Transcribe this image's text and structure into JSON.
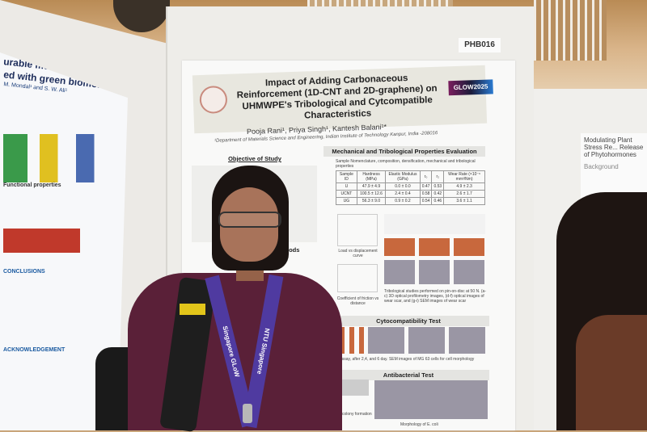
{
  "booth_label": "PHB016",
  "main_poster": {
    "title": "Impact of Adding Carbonaceous Reinforcement (1D-CNT and 2D-graphene) on UHMWPE's Tribological and Cytcompatible Characteristics",
    "conference_logo": "GLOW2025",
    "authors": "Pooja Rani¹, Priya Singh¹, Kantesh Balani¹*",
    "affiliation": "¹Department of Materials Science and Engineering, Indian Institute of Technology Kanpur, India -208016",
    "sections": {
      "objective": "Objective of Study",
      "methods": "Methods",
      "mechanical": "Mechanical and Tribological Properties Evaluation",
      "mechanical_intro": "Sample Nomenclature, composition, densification, mechanical and tribological properties",
      "cyto": "Cytocompatibility Test",
      "antibac": "Antibacterial Test"
    },
    "table": {
      "headers": [
        "Sample ID",
        "Hardness (MPa)",
        "Elastic Modulus (GPa)",
        "r₀",
        "r₂",
        "Wear Rate (×10⁻⁶ mm³/Nm)"
      ],
      "rows": [
        [
          "U",
          "47.9 ± 4.9",
          "0.0 ± 0.0",
          "0.47",
          "0.53",
          "4.9 ± 2.3"
        ],
        [
          "UCNT",
          "100.5 ± 12.6",
          "2.4 ± 0.4",
          "0.58",
          "0.42",
          "2.6 ± 1.7"
        ],
        [
          "UG",
          "56.3 ± 9.0",
          "0.9 ± 0.2",
          "0.54",
          "0.46",
          "3.6 ± 1.1"
        ]
      ]
    },
    "captions": {
      "load": "Load vs displacement curve",
      "cof": "Coefficient of friction vs distance",
      "tribo": "Tribological studies performed on pin-on-disc at 50 N. (a-c) 3D optical profilometry images, (d-f) optical images of wear scar, and (g-i) SEM images of wear scar",
      "cyto": "assay, after 2,4, and 6 day. SEM images of MG 63 cells for cell morphology",
      "colony": "colony formation",
      "morph": "Morphology of E. coli"
    }
  },
  "left_poster": {
    "title_line1": "urable multi-functional cotton",
    "title_line2": "ed with green biomolecule",
    "authors": "M. Mondal¹ and S. W. Ali¹",
    "functional": "Functional properties",
    "conclusions": "CONCLUSIONS",
    "acknowledgement": "ACKNOWLEDGEMENT"
  },
  "right_poster": {
    "title": "Modulating Plant Stress Re... Release of Phytohormones",
    "background": "Background"
  },
  "lanyard": {
    "left": "Singapore GLoW",
    "right": "NTU Singapore"
  }
}
